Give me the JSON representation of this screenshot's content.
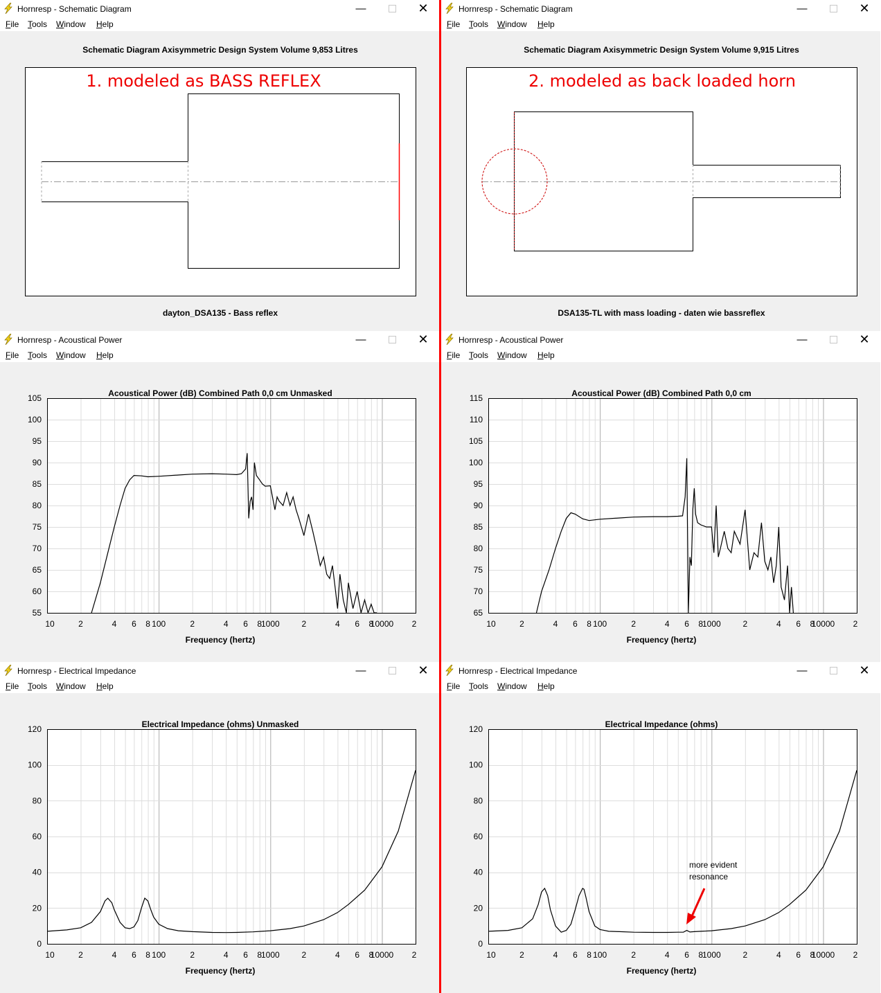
{
  "menu": [
    "File",
    "Tools",
    "Window",
    "Help"
  ],
  "colors": {
    "annotation": "#ff0000",
    "plot_line": "#000000",
    "grid": "#cccccc",
    "background": "#f0f0f0"
  },
  "icons": {
    "app": "lightning-bolt-icon",
    "minimize": "minimize-icon",
    "maximize": "maximize-icon",
    "close": "close-icon"
  },
  "windows": {
    "schem_left": {
      "title": "Hornresp - Schematic Diagram",
      "header": "Schematic Diagram   Axisymmetric Design   System Volume 9,853 Litres",
      "footer": "dayton_DSA135 - Bass reflex",
      "annotation": "1. modeled as BASS REFLEX"
    },
    "schem_right": {
      "title": "Hornresp - Schematic Diagram",
      "header": "Schematic Diagram   Axisymmetric Design   System Volume 9,915 Litres",
      "footer": "DSA135-TL with mass loading - daten wie bassreflex",
      "annotation": "2. modeled as back loaded horn"
    },
    "power_left": {
      "title": "Hornresp - Acoustical Power",
      "header": "Acoustical Power (dB)   Combined   Path 0,0 cm   Unmasked",
      "xlabel": "Frequency (hertz)"
    },
    "power_right": {
      "title": "Hornresp - Acoustical Power",
      "header": "Acoustical Power (dB)   Combined   Path 0,0 cm",
      "xlabel": "Frequency (hertz)"
    },
    "imp_left": {
      "title": "Hornresp - Electrical Impedance",
      "header": "Electrical Impedance (ohms)   Unmasked",
      "xlabel": "Frequency (hertz)"
    },
    "imp_right": {
      "title": "Hornresp - Electrical Impedance",
      "header": "Electrical Impedance (ohms)",
      "xlabel": "Frequency (hertz)",
      "annotation_lines": [
        "more evident",
        "resonance"
      ]
    }
  },
  "chart_data": [
    {
      "id": "power_left",
      "type": "line",
      "scale_x": "log",
      "grid": true,
      "xlim": [
        10,
        20000
      ],
      "ylim": [
        55,
        105
      ],
      "ytick_labels": [
        "105",
        "100",
        "95",
        "90",
        "85",
        "80",
        "75",
        "70",
        "65",
        "60",
        "55"
      ],
      "xtick_labels": [
        "10",
        "2",
        "4",
        "6",
        "8",
        "100",
        "2",
        "4",
        "6",
        "8",
        "1000",
        "2",
        "4",
        "6",
        "8",
        "10000",
        "2"
      ],
      "series": [
        {
          "x": [
            25,
            30,
            35,
            40,
            45,
            50,
            55,
            60,
            70,
            80,
            100,
            150,
            200,
            300,
            400,
            500,
            550,
            600,
            620,
            640,
            660,
            680,
            700,
            720,
            750,
            800,
            850,
            900,
            1000,
            1100,
            1150,
            1200,
            1300,
            1400,
            1500,
            1600,
            1700,
            1800,
            2000,
            2200,
            2400,
            2600,
            2800,
            3000,
            3200,
            3400,
            3600,
            3800,
            4000,
            4200,
            4500,
            4800,
            5000,
            5500,
            6000,
            6500,
            7000,
            7500,
            8000,
            8500,
            9000
          ],
          "y": [
            55,
            62,
            69,
            75,
            80,
            84,
            86,
            87,
            86.9,
            86.7,
            86.8,
            87.1,
            87.3,
            87.4,
            87.3,
            87.2,
            87.4,
            88.5,
            92.2,
            77,
            81,
            82,
            79,
            90,
            87,
            86,
            85,
            84.5,
            84.6,
            79,
            82,
            81,
            80,
            83,
            80,
            82,
            79,
            77,
            73,
            78,
            74,
            70,
            66,
            68,
            64,
            63,
            66,
            61,
            56,
            64,
            58,
            55,
            62,
            56,
            60,
            55,
            58,
            55,
            57,
            55,
            55
          ]
        }
      ]
    },
    {
      "id": "power_right",
      "type": "line",
      "scale_x": "log",
      "grid": true,
      "xlim": [
        10,
        20000
      ],
      "ylim": [
        65,
        115
      ],
      "ytick_labels": [
        "115",
        "110",
        "105",
        "100",
        "95",
        "90",
        "85",
        "80",
        "75",
        "70",
        "65"
      ],
      "xtick_labels": [
        "10",
        "2",
        "4",
        "6",
        "8",
        "100",
        "2",
        "4",
        "6",
        "8",
        "1000",
        "2",
        "4",
        "6",
        "8",
        "10000",
        "2"
      ],
      "series": [
        {
          "x": [
            27,
            30,
            35,
            40,
            45,
            50,
            55,
            60,
            70,
            80,
            100,
            150,
            200,
            300,
            400,
            500,
            550,
            580,
            600,
            620,
            640,
            660,
            680,
            700,
            720,
            750,
            800,
            900,
            1000,
            1050,
            1100,
            1150,
            1200,
            1300,
            1400,
            1500,
            1600,
            1800,
            2000,
            2200,
            2400,
            2600,
            2800,
            3000,
            3200,
            3400,
            3600,
            3800,
            4000,
            4200,
            4500,
            4800,
            5000,
            5200,
            5400
          ],
          "y": [
            65,
            70,
            75,
            80,
            84,
            87,
            88.3,
            88,
            86.9,
            86.5,
            86.8,
            87.1,
            87.3,
            87.4,
            87.4,
            87.5,
            87.6,
            92,
            101,
            65,
            78,
            76,
            89,
            94,
            88,
            86,
            85.5,
            85,
            85,
            79,
            90,
            78,
            80,
            84,
            80,
            79,
            84,
            81,
            89,
            75,
            79,
            78,
            86,
            77,
            75,
            78,
            72,
            76,
            85,
            71,
            68,
            76,
            65,
            71,
            65
          ]
        }
      ]
    },
    {
      "id": "imp_left",
      "type": "line",
      "scale_x": "log",
      "grid": true,
      "xlim": [
        10,
        20000
      ],
      "ylim": [
        0,
        120
      ],
      "ytick_labels": [
        "120",
        "100",
        "80",
        "60",
        "40",
        "20",
        "0"
      ],
      "xtick_labels": [
        "10",
        "2",
        "4",
        "6",
        "8",
        "100",
        "2",
        "4",
        "6",
        "8",
        "1000",
        "2",
        "4",
        "6",
        "8",
        "10000",
        "2"
      ],
      "series": [
        {
          "x": [
            10,
            15,
            20,
            25,
            30,
            33,
            35,
            38,
            40,
            45,
            50,
            55,
            60,
            65,
            70,
            75,
            80,
            85,
            90,
            100,
            120,
            150,
            200,
            300,
            400,
            500,
            700,
            1000,
            1500,
            2000,
            3000,
            4000,
            5000,
            7000,
            10000,
            14000,
            20000
          ],
          "y": [
            7,
            7.8,
            9,
            12,
            18,
            24,
            25.5,
            23,
            19,
            12,
            9,
            8.5,
            9.5,
            13,
            20,
            25.5,
            24,
            19,
            15,
            11,
            8.5,
            7.3,
            6.8,
            6.4,
            6.3,
            6.4,
            6.7,
            7.3,
            8.5,
            10,
            13.5,
            17.5,
            22,
            30,
            43,
            63,
            97
          ]
        }
      ]
    },
    {
      "id": "imp_right",
      "type": "line",
      "scale_x": "log",
      "grid": true,
      "xlim": [
        10,
        20000
      ],
      "ylim": [
        0,
        120
      ],
      "ytick_labels": [
        "120",
        "100",
        "80",
        "60",
        "40",
        "20",
        "0"
      ],
      "xtick_labels": [
        "10",
        "2",
        "4",
        "6",
        "8",
        "100",
        "2",
        "4",
        "6",
        "8",
        "1000",
        "2",
        "4",
        "6",
        "8",
        "10000",
        "2"
      ],
      "series": [
        {
          "x": [
            10,
            15,
            20,
            25,
            28,
            30,
            32,
            34,
            36,
            40,
            45,
            50,
            55,
            60,
            65,
            70,
            72,
            75,
            80,
            90,
            100,
            120,
            150,
            200,
            300,
            400,
            500,
            560,
            600,
            640,
            700,
            1000,
            1500,
            2000,
            3000,
            4000,
            5000,
            7000,
            10000,
            14000,
            20000
          ],
          "y": [
            7,
            7.5,
            9,
            14,
            22,
            29,
            31,
            27,
            19,
            10,
            6.5,
            7.5,
            11,
            19,
            27,
            31,
            30.5,
            26,
            18,
            10,
            8,
            7,
            6.8,
            6.5,
            6.4,
            6.4,
            6.5,
            6.5,
            7.5,
            6.6,
            6.8,
            7.3,
            8.5,
            10,
            13.5,
            17.5,
            22,
            30,
            43,
            63,
            97
          ]
        }
      ]
    }
  ]
}
